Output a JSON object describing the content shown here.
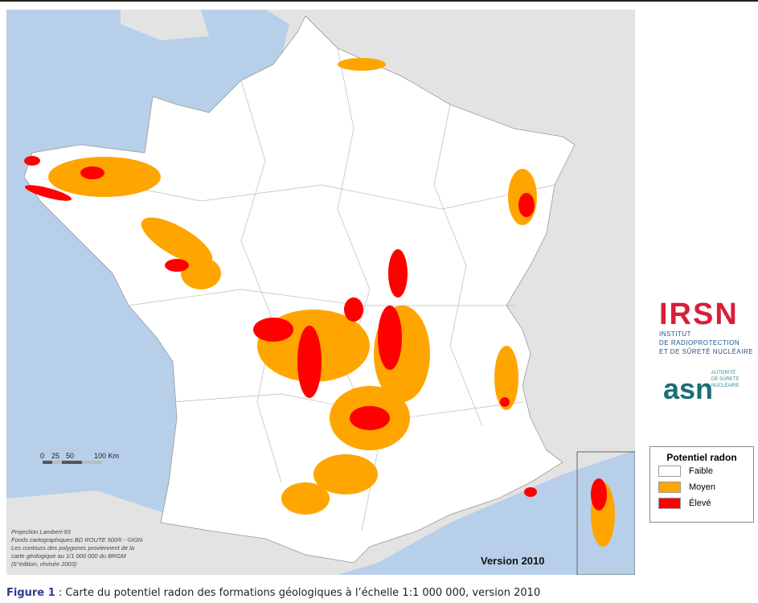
{
  "legend": {
    "title": "Potentiel radon",
    "items": [
      {
        "label": "Faible",
        "color": "#ffffff"
      },
      {
        "label": "Moyen",
        "color": "#ffa500"
      },
      {
        "label": "Élevé",
        "color": "#ff0000"
      }
    ]
  },
  "logos": {
    "irsn": {
      "name": "IRSN",
      "lines": [
        "INSTITUT",
        "DE RADIOPROTECTION",
        "ET DE SÛRETÉ NUCLÉAIRE"
      ]
    },
    "asn": {
      "name": "asn",
      "lines": [
        "AUTORITÉ",
        "DE SÛRETÉ",
        "NUCLÉAIRE"
      ]
    }
  },
  "scale": {
    "labels": [
      "0",
      "25",
      "50",
      "100 Km"
    ]
  },
  "source": [
    "Projection Lambert-93",
    "Fonds cartographiques BD ROUTE 500® - ©IGN",
    "Les contours des polygones proviennent de la",
    "carte géologique au 1/1 000 000 du BRGM",
    "(6°édition, révisée 2003)"
  ],
  "version": "Version 2010",
  "caption": {
    "label": "Figure 1",
    "text": " : Carte du potentiel radon des formations géologiques à l’échelle 1:1 000 000, version 2010"
  }
}
